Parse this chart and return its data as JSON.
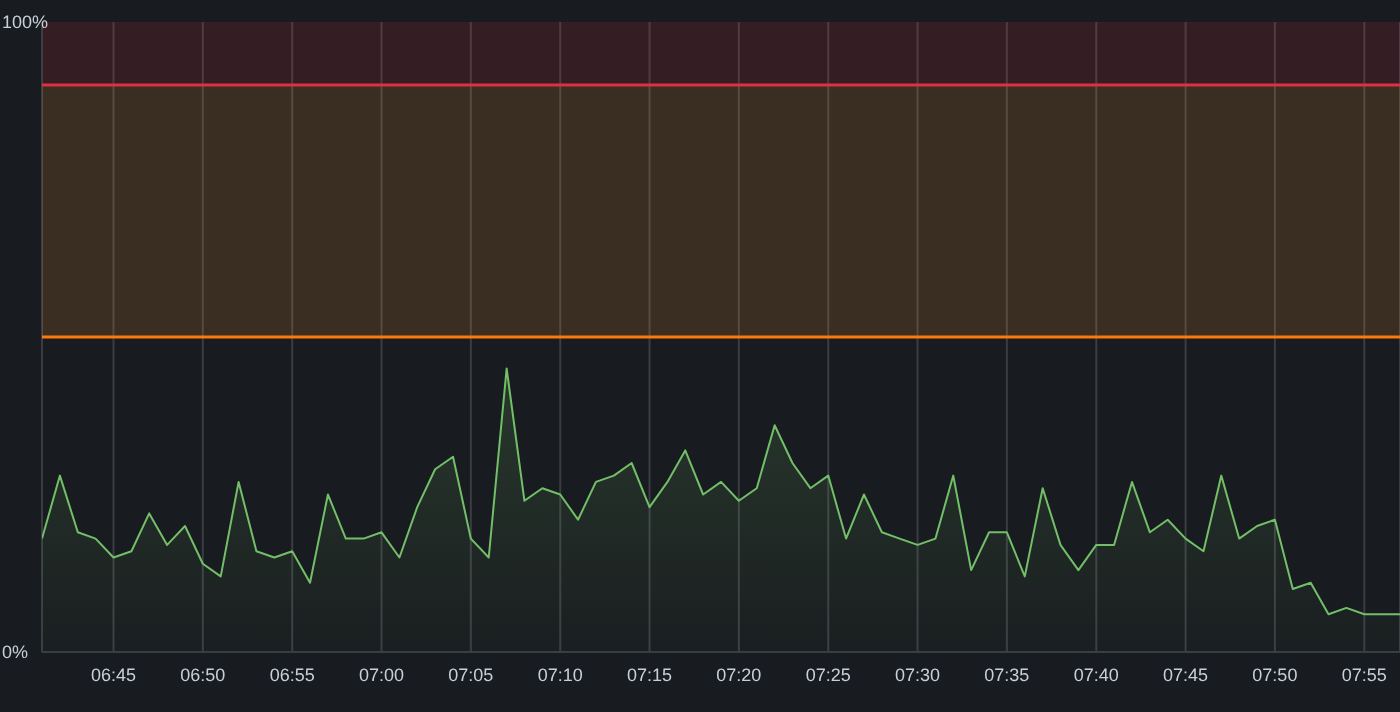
{
  "chart_data": {
    "type": "area",
    "x": [
      6.6833,
      6.7,
      6.7167,
      6.7333,
      6.75,
      6.7667,
      6.7833,
      6.8,
      6.8167,
      6.8333,
      6.85,
      6.8667,
      6.8833,
      6.9,
      6.9167,
      6.9333,
      6.95,
      6.9667,
      6.9833,
      7,
      7.0167,
      7.0333,
      7.05,
      7.0667,
      7.0833,
      7.1,
      7.1167,
      7.1333,
      7.15,
      7.1667,
      7.1833,
      7.2,
      7.2167,
      7.2333,
      7.25,
      7.2667,
      7.2833,
      7.3,
      7.3167,
      7.3333,
      7.35,
      7.3667,
      7.3833,
      7.4,
      7.4167,
      7.4333,
      7.45,
      7.4667,
      7.4833,
      7.5,
      7.5167,
      7.5333,
      7.55,
      7.5667,
      7.5833,
      7.6,
      7.6167,
      7.6333,
      7.65,
      7.6667,
      7.6833,
      7.7,
      7.7167,
      7.7333,
      7.75,
      7.7667,
      7.7833,
      7.8,
      7.8167,
      7.8333,
      7.85,
      7.8667,
      7.8833,
      7.9,
      7.9167,
      7.9333,
      7.95
    ],
    "series": [
      {
        "color": "#73bf69",
        "values": [
          18,
          28,
          19,
          18,
          15,
          16,
          22,
          17,
          20,
          14,
          12,
          27,
          16,
          15,
          16,
          11,
          25,
          18,
          18,
          19,
          15,
          23,
          29,
          31,
          18,
          15,
          45,
          24,
          26,
          25,
          21,
          27,
          28,
          30,
          23,
          27,
          32,
          25,
          27,
          24,
          26,
          36,
          30,
          26,
          28,
          18,
          25,
          19,
          18,
          17,
          18,
          28,
          13,
          19,
          19,
          12,
          26,
          17,
          13,
          17,
          17,
          27,
          19,
          21,
          18,
          16,
          28,
          18,
          20,
          21,
          10,
          11,
          6,
          7,
          6,
          6,
          6
        ]
      }
    ],
    "xlim": [
      6.6833,
      7.95
    ],
    "xticks": [
      {
        "value": 6.75,
        "label": "06:45"
      },
      {
        "value": 6.8333,
        "label": "06:50"
      },
      {
        "value": 6.9167,
        "label": "06:55"
      },
      {
        "value": 7,
        "label": "07:00"
      },
      {
        "value": 7.0833,
        "label": "07:05"
      },
      {
        "value": 7.1667,
        "label": "07:10"
      },
      {
        "value": 7.25,
        "label": "07:15"
      },
      {
        "value": 7.3333,
        "label": "07:20"
      },
      {
        "value": 7.4167,
        "label": "07:25"
      },
      {
        "value": 7.5,
        "label": "07:30"
      },
      {
        "value": 7.5833,
        "label": "07:35"
      },
      {
        "value": 7.6667,
        "label": "07:40"
      },
      {
        "value": 7.75,
        "label": "07:45"
      },
      {
        "value": 7.8333,
        "label": "07:50"
      },
      {
        "value": 7.9167,
        "label": "07:55"
      }
    ],
    "ylim": [
      0,
      100
    ],
    "yticks": [
      {
        "value": 0,
        "label": "0%"
      },
      {
        "value": 100,
        "label": "100%"
      }
    ],
    "grid": "x",
    "ref_lines": [
      {
        "axis": "y",
        "value": 50,
        "color": "#ff780a"
      },
      {
        "axis": "y",
        "value": 90,
        "color": "#e02f44"
      }
    ],
    "bands": [
      {
        "axis": "y",
        "from": 50,
        "to": 90,
        "color": "#ff9830"
      },
      {
        "axis": "y",
        "from": 90,
        "to": 100,
        "color": "#e02f44"
      }
    ]
  }
}
